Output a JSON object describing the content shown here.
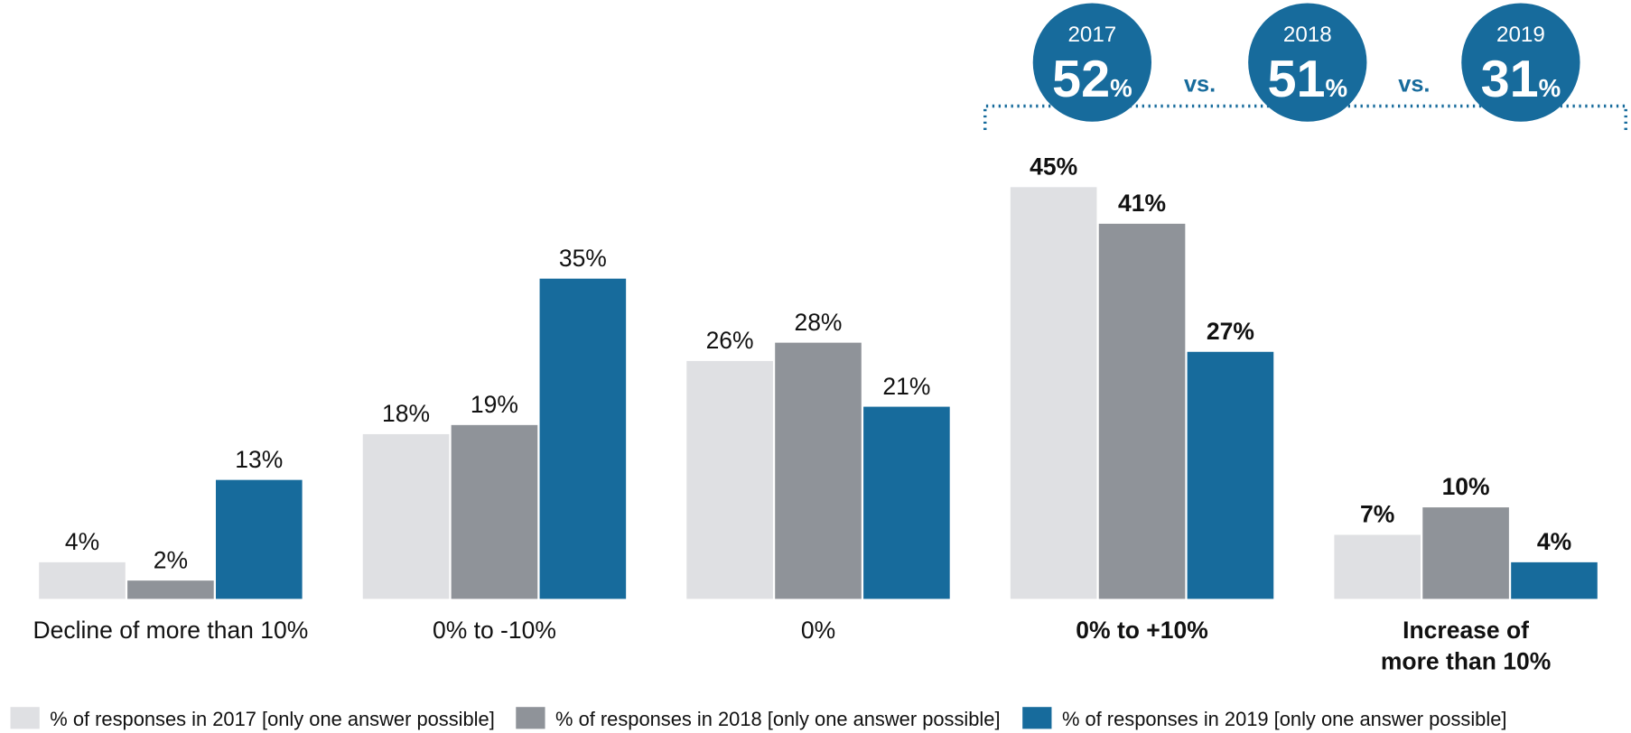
{
  "chart_data": {
    "type": "bar",
    "categories": [
      "Decline of more than 10%",
      "0% to -10%",
      "0%",
      "0% to +10%",
      "Increase of\nmore than 10%"
    ],
    "bold_categories": [
      3,
      4
    ],
    "series": [
      {
        "name": "% of responses in 2017 [only one answer possible]",
        "color": "#dfe0e3",
        "values": [
          4,
          18,
          26,
          45,
          7
        ],
        "value_labels": [
          "4%",
          "18%",
          "26%",
          "45%",
          "7%"
        ]
      },
      {
        "name": "% of responses in 2018 [only one answer possible]",
        "color": "#8f9399",
        "values": [
          2,
          19,
          28,
          41,
          10
        ],
        "value_labels": [
          "2%",
          "19%",
          "28%",
          "41%",
          "10%"
        ]
      },
      {
        "name": "% of responses in 2019 [only one answer possible]",
        "color": "#176b9c",
        "values": [
          13,
          35,
          21,
          27,
          4
        ],
        "value_labels": [
          "13%",
          "35%",
          "21%",
          "27%",
          "4%"
        ]
      }
    ],
    "callout": {
      "color": "#176b9c",
      "separator": "vs.",
      "items": [
        {
          "year": "2017",
          "value": 52,
          "unit": "%"
        },
        {
          "year": "2018",
          "value": 51,
          "unit": "%"
        },
        {
          "year": "2019",
          "value": 31,
          "unit": "%"
        }
      ]
    }
  }
}
